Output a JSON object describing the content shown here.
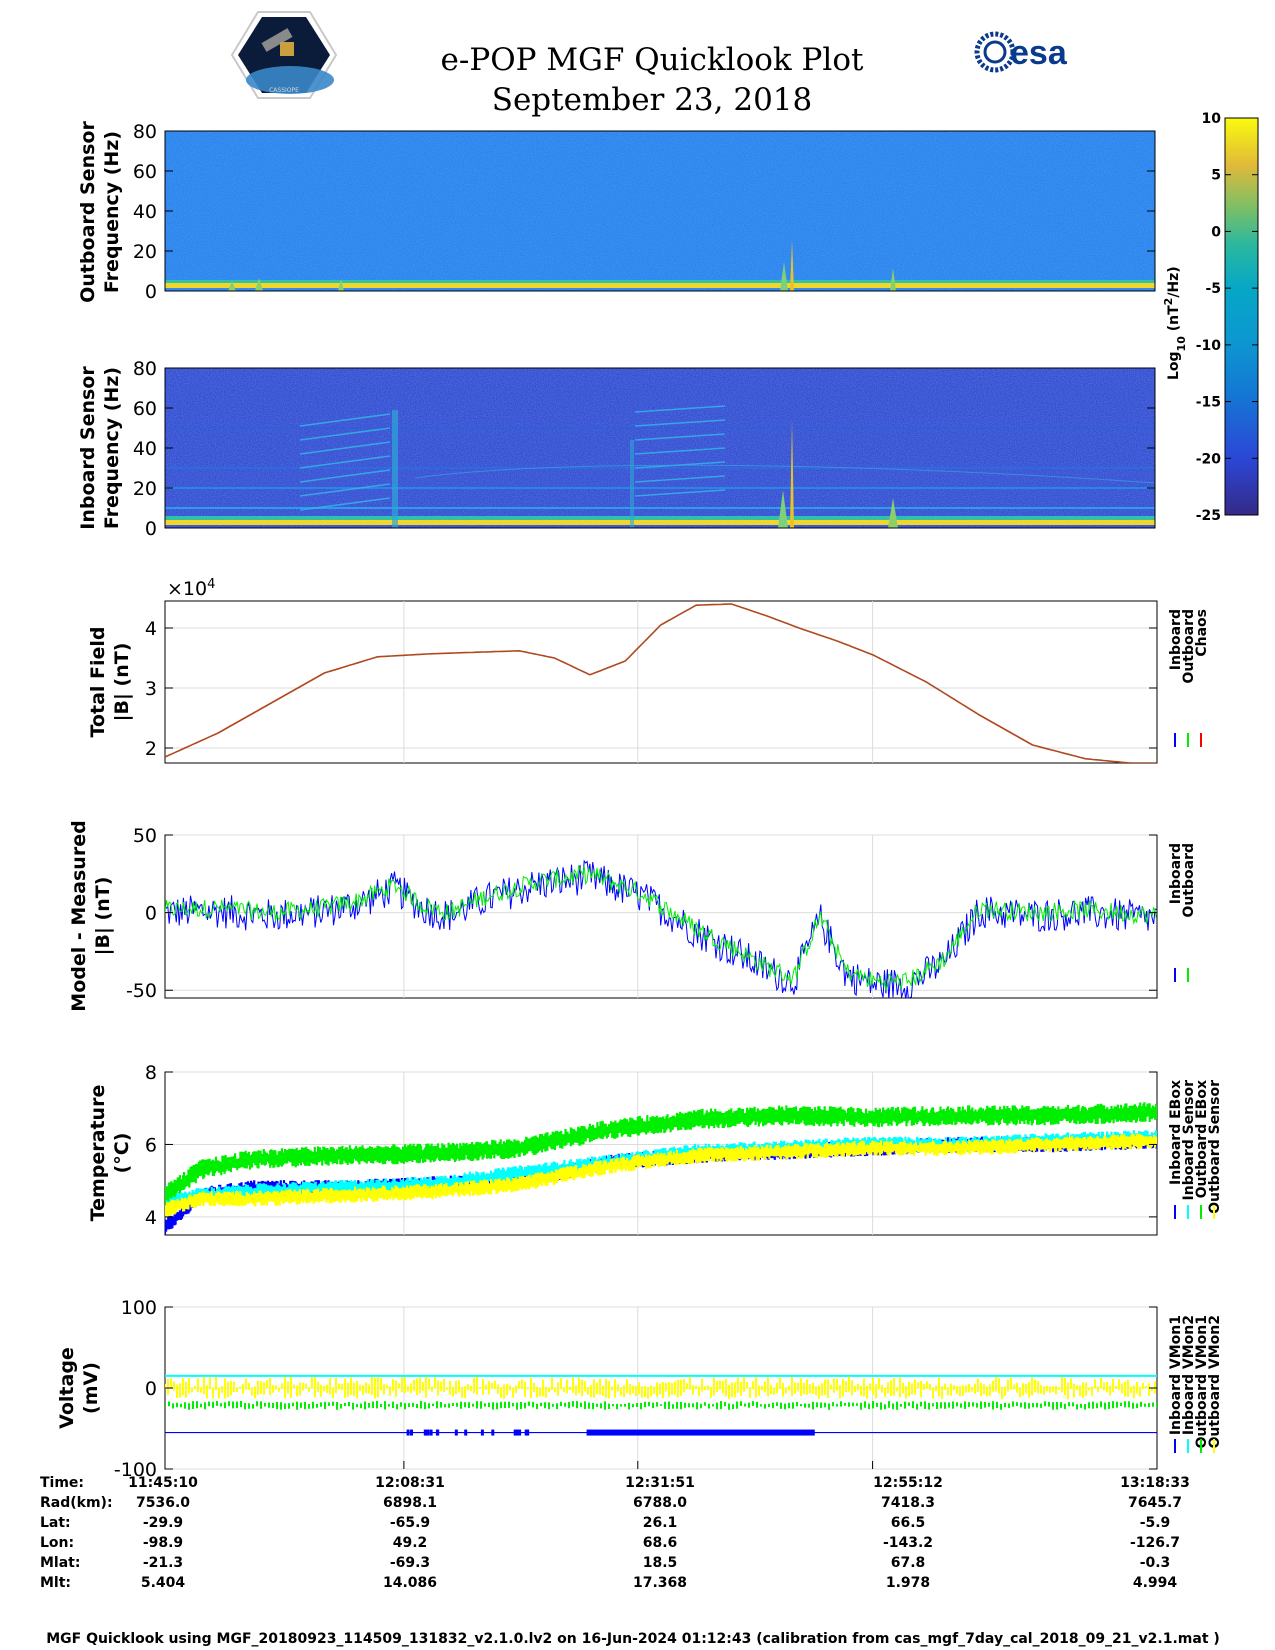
{
  "header": {
    "title": "e-POP MGF Quicklook Plot",
    "date": "September 23, 2018",
    "logo_left_text": "CASSIOPE",
    "logo_right_text": "esa"
  },
  "colors": {
    "inboard": "#0000ff",
    "outboard": "#00ee00",
    "chaos": "#ff0000",
    "cyan": "#00ffff",
    "yellow": "#ffff00"
  },
  "chart_data": [
    {
      "type": "heatmap",
      "id": "outboard-spectrogram",
      "ylabel": [
        "Outboard Sensor",
        "Frequency (Hz)"
      ],
      "ylim": [
        0,
        80
      ],
      "yticks": [
        "80",
        "60",
        "40",
        "20",
        "0"
      ],
      "level": "background log10 PSD ≈ -13, strong DC band near 0 Hz"
    },
    {
      "type": "heatmap",
      "id": "inboard-spectrogram",
      "ylabel": [
        "Inboard Sensor",
        "Frequency (Hz)"
      ],
      "ylim": [
        0,
        80
      ],
      "yticks": [
        "80",
        "60",
        "40",
        "20",
        "0"
      ],
      "level": "background log10 PSD ≈ -22, harmonic lines at 10, 20, 30, 50 Hz"
    },
    {
      "type": "colorbar",
      "id": "psd-colorbar",
      "label_main": "Log",
      "label_sub": "10",
      "label_rest": " (nT",
      "label_sup": "2",
      "label_end": "/Hz)",
      "range": [
        -25,
        10
      ],
      "ticks": [
        "10",
        "5",
        "0",
        "-5",
        "-10",
        "-15",
        "-20",
        "-25"
      ]
    },
    {
      "type": "line",
      "id": "total-field",
      "ylabel": [
        "Total Field",
        "|B| (nT)"
      ],
      "exponent_base": "×10",
      "exponent_power": "4",
      "ylim": [
        1.75,
        4.45
      ],
      "yticks": [
        "4",
        "3",
        "2"
      ],
      "xlim": [
        0,
        5603
      ],
      "x": [
        0,
        300,
        600,
        900,
        1200,
        1500,
        1800,
        2000,
        2200,
        2400,
        2600,
        2800,
        3000,
        3200,
        3400,
        3600,
        3800,
        4000,
        4300,
        4600,
        4900,
        5200,
        5450,
        5603
      ],
      "series": [
        {
          "name": "Inboard",
          "values": [
            1.85,
            2.25,
            2.75,
            3.25,
            3.52,
            3.57,
            3.6,
            3.62,
            3.5,
            3.22,
            3.45,
            4.05,
            4.38,
            4.4,
            4.2,
            3.98,
            3.78,
            3.55,
            3.1,
            2.55,
            2.05,
            1.82,
            1.75,
            1.75
          ]
        }
      ],
      "legend": [
        "Inboard",
        "Outboard",
        "Chaos"
      ]
    },
    {
      "type": "line",
      "id": "model-minus-measured",
      "ylabel": [
        "Model - Measured",
        "|B| (nT)"
      ],
      "ylim": [
        -55,
        50
      ],
      "yticks": [
        "50",
        "0",
        "-50"
      ],
      "xlim": [
        0,
        5603
      ],
      "x": [
        0,
        300,
        600,
        900,
        1100,
        1300,
        1450,
        1600,
        1800,
        2100,
        2400,
        2700,
        3000,
        3200,
        3400,
        3550,
        3700,
        3850,
        4000,
        4200,
        4400,
        4600,
        4900,
        5200,
        5603
      ],
      "series": [
        {
          "name": "Inboard",
          "values": [
            2,
            3,
            0,
            3,
            8,
            18,
            5,
            0,
            10,
            20,
            25,
            12,
            -10,
            -22,
            -35,
            -42,
            -2,
            -38,
            -44,
            -44,
            -30,
            3,
            0,
            2,
            -2
          ]
        },
        {
          "name": "Outboard",
          "values": [
            2,
            3,
            0,
            3,
            8,
            18,
            5,
            0,
            10,
            20,
            25,
            12,
            -10,
            -22,
            -35,
            -42,
            -2,
            -38,
            -44,
            -44,
            -30,
            3,
            0,
            2,
            -2
          ]
        }
      ],
      "legend": [
        "Inboard",
        "Outboard"
      ]
    },
    {
      "type": "scatter",
      "id": "temperature",
      "ylabel": [
        "Temperature",
        "(°C)"
      ],
      "ylim": [
        3.5,
        8
      ],
      "yticks": [
        "8",
        "6",
        "4"
      ],
      "xlim": [
        0,
        5603
      ],
      "x": [
        0,
        200,
        500,
        1000,
        1500,
        2000,
        2500,
        3000,
        3500,
        4000,
        4500,
        5000,
        5603
      ],
      "series": [
        {
          "name": "Inboard EBox",
          "values": [
            3.7,
            4.6,
            4.8,
            4.8,
            4.9,
            5.0,
            5.5,
            5.7,
            5.8,
            5.9,
            6.0,
            6.0,
            6.1
          ]
        },
        {
          "name": "Inboard Sensor",
          "values": [
            4.4,
            4.6,
            4.7,
            4.8,
            4.9,
            5.2,
            5.5,
            5.8,
            5.9,
            6.0,
            6.0,
            6.1,
            6.2
          ]
        },
        {
          "name": "Outboard EBox",
          "values": [
            4.6,
            5.3,
            5.6,
            5.7,
            5.75,
            5.9,
            6.4,
            6.7,
            6.8,
            6.75,
            6.8,
            6.8,
            6.9
          ]
        },
        {
          "name": "Outboard Sensor",
          "values": [
            4.2,
            4.5,
            4.5,
            4.6,
            4.7,
            4.9,
            5.4,
            5.7,
            5.8,
            5.9,
            5.9,
            6.0,
            6.1
          ]
        }
      ],
      "legend": [
        "Inboard EBox",
        "Inboard Sensor",
        "Outboard EBox",
        "Outboard Sensor"
      ]
    },
    {
      "type": "scatter",
      "id": "voltage",
      "ylabel": [
        "Voltage",
        "(mV)"
      ],
      "ylim": [
        -100,
        100
      ],
      "yticks": [
        "100",
        "0",
        "-100"
      ],
      "xlim": [
        0,
        5603
      ],
      "series": [
        {
          "name": "Inboard VMon1",
          "level": -55
        },
        {
          "name": "Inboard VMon2",
          "level": 15
        },
        {
          "name": "Outboard VMon1",
          "level": -20
        },
        {
          "name": "Outboard VMon2",
          "level": 0
        }
      ],
      "legend": [
        "Inboard VMon1",
        "Inboard VMon2",
        "Outboard VMon1",
        "Outboard VMon2"
      ]
    }
  ],
  "ephemeris": {
    "labels": [
      "Time:",
      "Rad(km):",
      "Lat:",
      "Lon:",
      "Mlat:",
      "Mlt:"
    ],
    "columns": [
      [
        "11:45:10",
        "7536.0",
        "-29.9",
        "-98.9",
        "-21.3",
        "5.404"
      ],
      [
        "12:08:31",
        "6898.1",
        "-65.9",
        "49.2",
        "-69.3",
        "14.086"
      ],
      [
        "12:31:51",
        "6788.0",
        "26.1",
        "68.6",
        "18.5",
        "17.368"
      ],
      [
        "12:55:12",
        "7418.3",
        "66.5",
        "-143.2",
        "67.8",
        "1.978"
      ],
      [
        "13:18:33",
        "7645.7",
        "-5.9",
        "-126.7",
        "-0.3",
        "4.994"
      ]
    ]
  },
  "footer": "MGF Quicklook using MGF_20180923_114509_131832_v2.1.0.lv2 on 16-Jun-2024 01:12:43 (calibration from cas_mgf_7day_cal_2018_09_21_v2.1.mat )"
}
